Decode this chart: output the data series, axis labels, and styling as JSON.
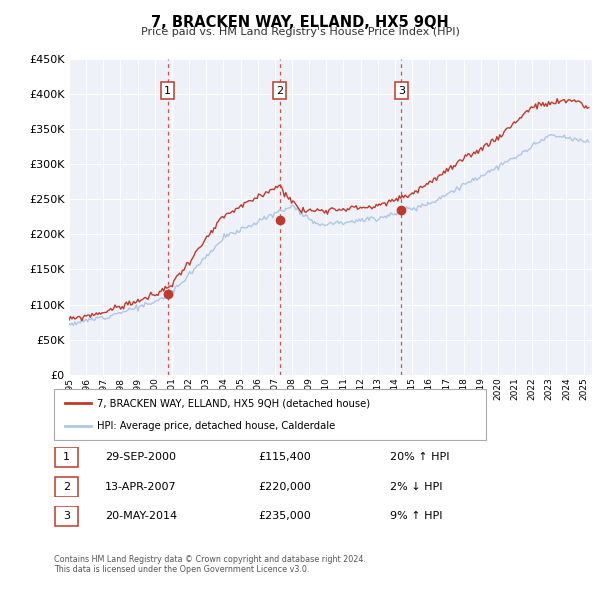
{
  "title": "7, BRACKEN WAY, ELLAND, HX5 9QH",
  "subtitle": "Price paid vs. HM Land Registry's House Price Index (HPI)",
  "legend_line1": "7, BRACKEN WAY, ELLAND, HX5 9QH (detached house)",
  "legend_line2": "HPI: Average price, detached house, Calderdale",
  "footnote1": "Contains HM Land Registry data © Crown copyright and database right 2024.",
  "footnote2": "This data is licensed under the Open Government Licence v3.0.",
  "transactions": [
    {
      "num": 1,
      "date": "29-SEP-2000",
      "year": 2000.75,
      "price": 115400,
      "pct": "20%",
      "dir": "↑"
    },
    {
      "num": 2,
      "date": "13-APR-2007",
      "year": 2007.28,
      "price": 220000,
      "pct": "2%",
      "dir": "↓"
    },
    {
      "num": 3,
      "date": "20-MAY-2014",
      "year": 2014.38,
      "price": 235000,
      "pct": "9%",
      "dir": "↑"
    }
  ],
  "hpi_color": "#aec6e8",
  "price_color": "#c0392b",
  "dashed_color": "#c0392b",
  "background_color": "#eef2f8",
  "ylim": [
    0,
    450000
  ],
  "xlim_start": 1995.0,
  "xlim_end": 2025.5
}
